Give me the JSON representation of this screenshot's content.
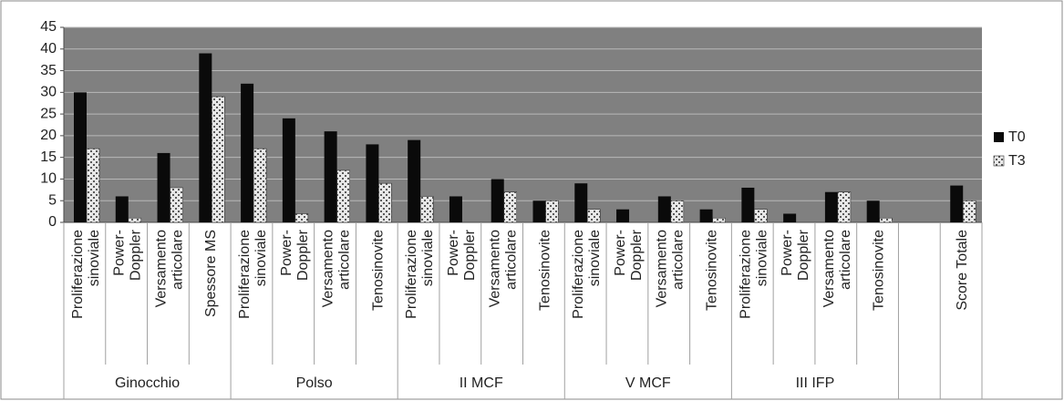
{
  "chart_data": {
    "type": "bar",
    "ylim": [
      0,
      45
    ],
    "yticks": [
      0,
      5,
      10,
      15,
      20,
      25,
      30,
      35,
      40,
      45
    ],
    "grid": true,
    "legend_position": "right",
    "colors": {
      "T0": "#0a0a0a",
      "T3": "#e8e8e8",
      "plot_background": "#808080"
    },
    "groups": [
      {
        "name": "Ginocchio",
        "categories": [
          [
            "Proliferazione",
            "sinoviale"
          ],
          [
            "Power-",
            "Doppler"
          ],
          [
            "Versamento",
            "articolare"
          ],
          [
            "Spessore MS"
          ]
        ]
      },
      {
        "name": "Polso",
        "categories": [
          [
            "Proliferazione",
            "sinoviale"
          ],
          [
            "Power-",
            "Doppler"
          ],
          [
            "Versamento",
            "articolare"
          ],
          [
            "Tenosinovite"
          ]
        ]
      },
      {
        "name": "II MCF",
        "categories": [
          [
            "Proliferazione",
            "sinoviale"
          ],
          [
            "Power-",
            "Doppler"
          ],
          [
            "Versamento",
            "articolare"
          ],
          [
            "Tenosinovite"
          ]
        ]
      },
      {
        "name": "V MCF",
        "categories": [
          [
            "Proliferazione",
            "sinoviale"
          ],
          [
            "Power-",
            "Doppler"
          ],
          [
            "Versamento",
            "articolare"
          ],
          [
            "Tenosinovite"
          ]
        ]
      },
      {
        "name": "III IFP",
        "categories": [
          [
            "Proliferazione",
            "sinoviale"
          ],
          [
            "Power-",
            "Doppler"
          ],
          [
            "Versamento",
            "articolare"
          ],
          [
            "Tenosinovite"
          ]
        ]
      },
      {
        "name": "",
        "categories": [
          [
            ""
          ]
        ]
      },
      {
        "name": "",
        "categories": [
          [
            "Score Totale"
          ]
        ]
      }
    ],
    "series": [
      {
        "name": "T0",
        "values": [
          30,
          6,
          16,
          39,
          32,
          24,
          21,
          18,
          19,
          6,
          10,
          5,
          9,
          3,
          6,
          3,
          8,
          2,
          7,
          5,
          null,
          8.5
        ]
      },
      {
        "name": "T3",
        "values": [
          17,
          1,
          8,
          29,
          17,
          2,
          12,
          9,
          6,
          0,
          7,
          5,
          3,
          0,
          5,
          1,
          3,
          0,
          7,
          1,
          null,
          5
        ]
      }
    ]
  }
}
